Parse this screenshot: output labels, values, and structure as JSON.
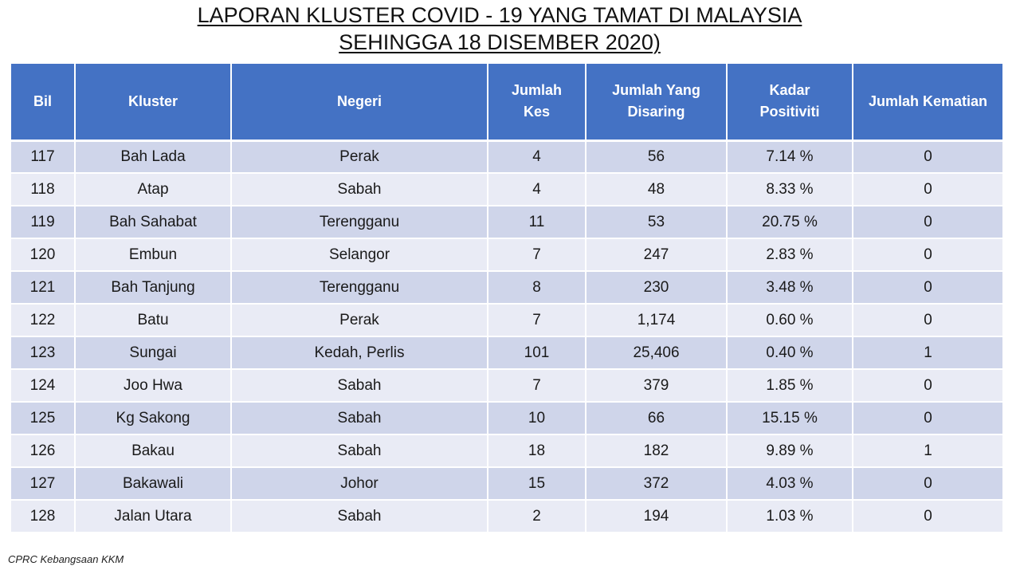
{
  "title": {
    "line1": "LAPORAN KLUSTER COVID - 19 YANG TAMAT DI MALAYSIA",
    "line2": "SEHINGGA 18 DISEMBER 2020)"
  },
  "table": {
    "headers": {
      "bil": "Bil",
      "kluster": "Kluster",
      "negeri": "Negeri",
      "jumlah_kes": "Jumlah Kes",
      "jumlah_disaring": "Jumlah Yang Disaring",
      "kadar_positiviti": "Kadar Positiviti",
      "jumlah_kematian": "Jumlah Kematian"
    },
    "rows": [
      {
        "bil": "117",
        "kluster": "Bah Lada",
        "negeri": "Perak",
        "kes": "4",
        "disaring": "56",
        "positiviti": "7.14 %",
        "kematian": "0"
      },
      {
        "bil": "118",
        "kluster": "Atap",
        "negeri": "Sabah",
        "kes": "4",
        "disaring": "48",
        "positiviti": "8.33 %",
        "kematian": "0"
      },
      {
        "bil": "119",
        "kluster": "Bah Sahabat",
        "negeri": "Terengganu",
        "kes": "11",
        "disaring": "53",
        "positiviti": "20.75 %",
        "kematian": "0"
      },
      {
        "bil": "120",
        "kluster": "Embun",
        "negeri": "Selangor",
        "kes": "7",
        "disaring": "247",
        "positiviti": "2.83 %",
        "kematian": "0"
      },
      {
        "bil": "121",
        "kluster": "Bah Tanjung",
        "negeri": "Terengganu",
        "kes": "8",
        "disaring": "230",
        "positiviti": "3.48 %",
        "kematian": "0"
      },
      {
        "bil": "122",
        "kluster": "Batu",
        "negeri": "Perak",
        "kes": "7",
        "disaring": "1,174",
        "positiviti": "0.60 %",
        "kematian": "0"
      },
      {
        "bil": "123",
        "kluster": "Sungai",
        "negeri": "Kedah, Perlis",
        "kes": "101",
        "disaring": "25,406",
        "positiviti": "0.40 %",
        "kematian": "1"
      },
      {
        "bil": "124",
        "kluster": "Joo Hwa",
        "negeri": "Sabah",
        "kes": "7",
        "disaring": "379",
        "positiviti": "1.85 %",
        "kematian": "0"
      },
      {
        "bil": "125",
        "kluster": "Kg Sakong",
        "negeri": "Sabah",
        "kes": "10",
        "disaring": "66",
        "positiviti": "15.15 %",
        "kematian": "0"
      },
      {
        "bil": "126",
        "kluster": "Bakau",
        "negeri": "Sabah",
        "kes": "18",
        "disaring": "182",
        "positiviti": "9.89 %",
        "kematian": "1"
      },
      {
        "bil": "127",
        "kluster": "Bakawali",
        "negeri": "Johor",
        "kes": "15",
        "disaring": "372",
        "positiviti": "4.03 %",
        "kematian": "0"
      },
      {
        "bil": "128",
        "kluster": "Jalan Utara",
        "negeri": "Sabah",
        "kes": "2",
        "disaring": "194",
        "positiviti": "1.03 %",
        "kematian": "0"
      }
    ]
  },
  "source": "CPRC Kebangsaan KKM",
  "colors": {
    "header_bg": "#4472c4",
    "row_odd": "#cfd5ea",
    "row_even": "#e9ebf5"
  }
}
